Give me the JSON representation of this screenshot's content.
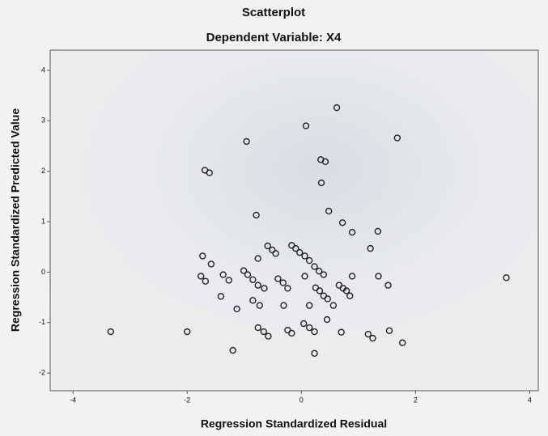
{
  "chart_data": {
    "type": "scatter",
    "title": "Scatterplot",
    "subtitle": "Dependent Variable: X4",
    "x_label": "Regression Standardized Residual",
    "y_label": "Regression Standardized Predicted Value",
    "color": "#222222",
    "x": [
      -3.34,
      -2.0,
      -1.69,
      -1.61,
      -1.73,
      -1.58,
      -1.76,
      -1.68,
      -1.41,
      -1.37,
      -1.27,
      -1.13,
      -1.2,
      -0.96,
      -0.79,
      -0.76,
      -1.01,
      -0.94,
      -0.85,
      -0.76,
      -0.65,
      -0.85,
      -0.73,
      -0.76,
      -0.66,
      -0.58,
      -0.59,
      -0.51,
      -0.45,
      -0.41,
      -0.32,
      -0.31,
      -0.24,
      -0.24,
      -0.17,
      -0.17,
      -0.1,
      -0.03,
      0.06,
      0.14,
      0.06,
      0.08,
      0.23,
      0.31,
      0.39,
      0.25,
      0.32,
      0.39,
      0.14,
      0.04,
      0.14,
      0.23,
      0.23,
      0.34,
      0.35,
      0.42,
      0.48,
      0.46,
      0.45,
      0.56,
      0.62,
      0.66,
      0.73,
      0.79,
      0.85,
      0.72,
      0.7,
      0.89,
      0.89,
      1.21,
      1.17,
      1.25,
      1.34,
      1.35,
      1.52,
      1.54,
      1.68,
      1.77,
      3.59
    ],
    "values": [
      -1.18,
      -1.18,
      2.02,
      1.97,
      0.32,
      0.16,
      -0.08,
      -0.18,
      -0.48,
      -0.05,
      -0.16,
      -0.73,
      -1.55,
      2.59,
      1.13,
      0.27,
      0.03,
      -0.05,
      -0.15,
      -0.26,
      -0.32,
      -0.56,
      -0.66,
      -1.1,
      -1.18,
      -1.27,
      0.52,
      0.44,
      0.37,
      -0.13,
      -0.21,
      -0.66,
      -0.32,
      -1.15,
      -1.21,
      0.53,
      0.47,
      0.39,
      0.32,
      0.23,
      -0.08,
      2.9,
      0.11,
      0.02,
      -0.05,
      -0.31,
      -0.37,
      -0.47,
      -0.66,
      -1.02,
      -1.1,
      -1.18,
      -1.61,
      2.23,
      1.77,
      2.19,
      1.21,
      -0.53,
      -0.94,
      -0.66,
      3.26,
      -0.26,
      -0.32,
      -0.37,
      -0.47,
      0.98,
      -1.19,
      0.79,
      -0.08,
      0.47,
      -1.23,
      -1.31,
      0.81,
      -0.08,
      -0.26,
      -1.16,
      2.66,
      -1.4,
      -0.11
    ],
    "xlim": [
      -4.4,
      4.15
    ],
    "ylim": [
      -2.35,
      4.4
    ],
    "xticks": [
      -4,
      -2,
      0,
      2,
      4
    ],
    "yticks": [
      -2,
      -1,
      0,
      1,
      2,
      3,
      4
    ]
  }
}
